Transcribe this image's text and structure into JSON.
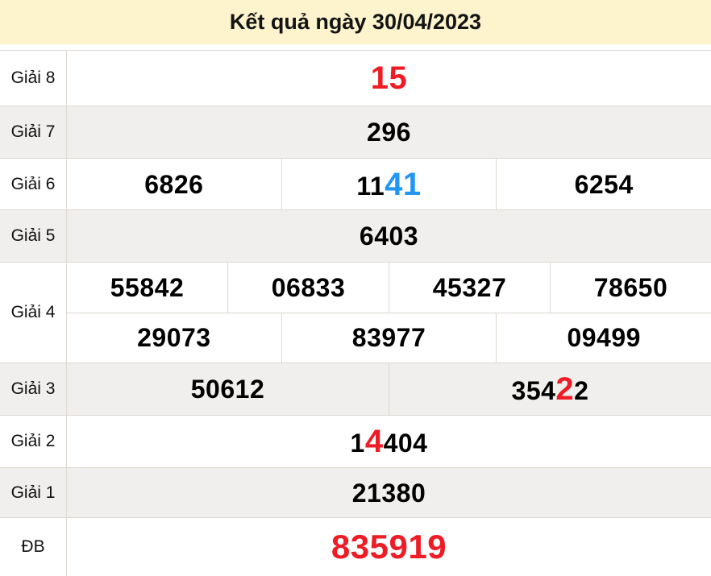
{
  "header": {
    "title": "Kết quả ngày 30/04/2023"
  },
  "colors": {
    "title_bg": "#fdf3cd",
    "row_shade": "#f1efed",
    "border": "#ddd8d1",
    "highlight_red": "#ee1c25",
    "highlight_blue": "#2196f3",
    "number_black": "#000000"
  },
  "table": {
    "rows": [
      {
        "id": "giai-8",
        "label": "Giải 8",
        "shaded": false,
        "lines": [
          [
            [
              {
                "text": "15",
                "color": "red",
                "size": "big"
              }
            ]
          ]
        ]
      },
      {
        "id": "giai-7",
        "label": "Giải 7",
        "shaded": true,
        "lines": [
          [
            [
              {
                "text": "296"
              }
            ]
          ]
        ]
      },
      {
        "id": "giai-6",
        "label": "Giải 6",
        "shaded": false,
        "lines": [
          [
            [
              {
                "text": "6826"
              }
            ],
            [
              {
                "text": "11"
              },
              {
                "text": "41",
                "color": "blue",
                "size": "big"
              }
            ],
            [
              {
                "text": "6254"
              }
            ]
          ]
        ]
      },
      {
        "id": "giai-5",
        "label": "Giải 5",
        "shaded": true,
        "lines": [
          [
            [
              {
                "text": "6403"
              }
            ]
          ]
        ]
      },
      {
        "id": "giai-4",
        "label": "Giải 4",
        "shaded": false,
        "lines": [
          [
            [
              {
                "text": "55842"
              }
            ],
            [
              {
                "text": "06833"
              }
            ],
            [
              {
                "text": "45327"
              }
            ],
            [
              {
                "text": "78650"
              }
            ]
          ],
          [
            [
              {
                "text": "29073"
              }
            ],
            [
              {
                "text": "83977"
              }
            ],
            [
              {
                "text": "09499"
              }
            ]
          ]
        ]
      },
      {
        "id": "giai-3",
        "label": "Giải 3",
        "shaded": true,
        "lines": [
          [
            [
              {
                "text": "50612"
              }
            ],
            [
              {
                "text": "354"
              },
              {
                "text": "2",
                "color": "red",
                "size": "big"
              },
              {
                "text": "2"
              }
            ]
          ]
        ]
      },
      {
        "id": "giai-2",
        "label": "Giải 2",
        "shaded": false,
        "lines": [
          [
            [
              {
                "text": "1"
              },
              {
                "text": "4",
                "color": "red",
                "size": "big"
              },
              {
                "text": "404"
              }
            ]
          ]
        ]
      },
      {
        "id": "giai-1",
        "label": "Giải 1",
        "shaded": true,
        "lines": [
          [
            [
              {
                "text": "21380"
              }
            ]
          ]
        ]
      },
      {
        "id": "db",
        "label": "ĐB",
        "shaded": false,
        "lines": [
          [
            [
              {
                "text": "835919",
                "color": "red",
                "size": "xl"
              }
            ]
          ]
        ]
      }
    ]
  }
}
